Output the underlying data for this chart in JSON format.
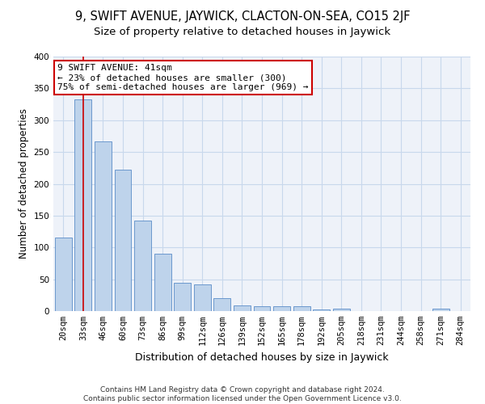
{
  "title1": "9, SWIFT AVENUE, JAYWICK, CLACTON-ON-SEA, CO15 2JF",
  "title2": "Size of property relative to detached houses in Jaywick",
  "xlabel": "Distribution of detached houses by size in Jaywick",
  "ylabel": "Number of detached properties",
  "categories": [
    "20sqm",
    "33sqm",
    "46sqm",
    "60sqm",
    "73sqm",
    "86sqm",
    "99sqm",
    "112sqm",
    "126sqm",
    "139sqm",
    "152sqm",
    "165sqm",
    "178sqm",
    "192sqm",
    "205sqm",
    "218sqm",
    "231sqm",
    "244sqm",
    "258sqm",
    "271sqm",
    "284sqm"
  ],
  "values": [
    115,
    333,
    267,
    222,
    142,
    90,
    45,
    42,
    20,
    9,
    7,
    8,
    7,
    3,
    4,
    0,
    0,
    0,
    0,
    4,
    0
  ],
  "bar_color": "#bed3eb",
  "bar_edge_color": "#5b8cc8",
  "vline_x_pos": 1.5,
  "vline_color": "#cc0000",
  "annotation_text": "9 SWIFT AVENUE: 41sqm\n← 23% of detached houses are smaller (300)\n75% of semi-detached houses are larger (969) →",
  "annotation_box_color": "#ffffff",
  "annotation_box_edge": "#cc0000",
  "ylim": [
    0,
    400
  ],
  "yticks": [
    0,
    50,
    100,
    150,
    200,
    250,
    300,
    350,
    400
  ],
  "grid_color": "#c8d8ec",
  "background_color": "#eef2f9",
  "footer": "Contains HM Land Registry data © Crown copyright and database right 2024.\nContains public sector information licensed under the Open Government Licence v3.0.",
  "title1_fontsize": 10.5,
  "title2_fontsize": 9.5,
  "xlabel_fontsize": 9,
  "ylabel_fontsize": 8.5,
  "tick_fontsize": 7.5,
  "annotation_fontsize": 8,
  "footer_fontsize": 6.5
}
